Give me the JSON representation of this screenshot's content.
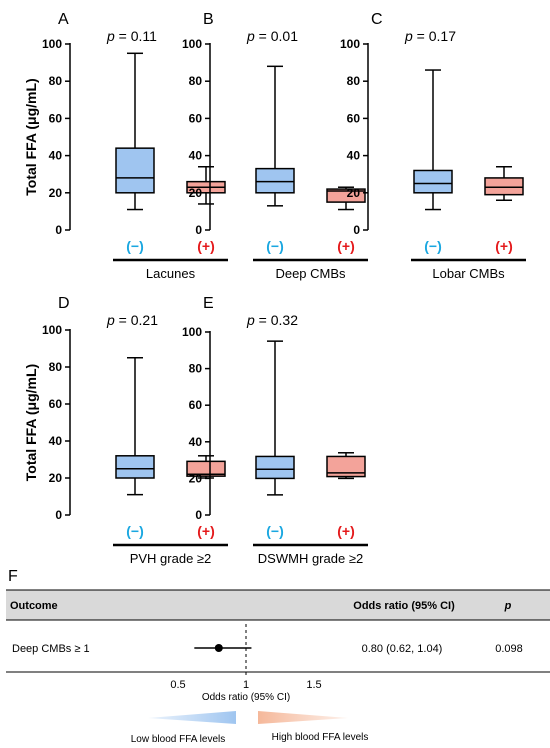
{
  "chart_data": [
    {
      "panel": "A",
      "type": "box",
      "p_label": "p",
      "p_text": "= 0.11",
      "ylabel": "Total FFA (μg/mL)",
      "ylim": [
        0,
        100
      ],
      "yticks": [
        0,
        20,
        40,
        60,
        80,
        100
      ],
      "group_label": "Lacunes",
      "series": [
        {
          "name": "(−)",
          "min": 11,
          "q1": 20,
          "median": 28,
          "q3": 44,
          "max": 95,
          "color": "#9fc5f0"
        },
        {
          "name": "(+)",
          "min": 14,
          "q1": 20,
          "median": 23,
          "q3": 26,
          "max": 34,
          "color": "#f3a39a"
        }
      ]
    },
    {
      "panel": "B",
      "type": "box",
      "p_label": "p",
      "p_text": "= 0.01",
      "ylim": [
        0,
        100
      ],
      "yticks": [
        0,
        20,
        40,
        60,
        80,
        100
      ],
      "group_label": "Deep CMBs",
      "series": [
        {
          "name": "(−)",
          "min": 13,
          "q1": 20,
          "median": 26,
          "q3": 33,
          "max": 88,
          "color": "#9fc5f0"
        },
        {
          "name": "(+)",
          "min": 11,
          "q1": 15,
          "median": 21,
          "q3": 22,
          "max": 23,
          "color": "#f3a39a"
        }
      ]
    },
    {
      "panel": "C",
      "type": "box",
      "p_label": "p",
      "p_text": "= 0.17",
      "ylim": [
        0,
        100
      ],
      "yticks": [
        0,
        20,
        40,
        60,
        80,
        100
      ],
      "group_label": "Lobar CMBs",
      "series": [
        {
          "name": "(−)",
          "min": 11,
          "q1": 20,
          "median": 25,
          "q3": 32,
          "max": 86,
          "color": "#9fc5f0"
        },
        {
          "name": "(+)",
          "min": 16,
          "q1": 19,
          "median": 23,
          "q3": 28,
          "max": 34,
          "color": "#f3a39a"
        }
      ]
    },
    {
      "panel": "D",
      "type": "box",
      "p_label": "p",
      "p_text": "= 0.21",
      "ylabel": "Total FFA (μg/mL)",
      "ylim": [
        0,
        100
      ],
      "yticks": [
        0,
        20,
        40,
        60,
        80,
        100
      ],
      "group_label": "PVH grade ≥2",
      "series": [
        {
          "name": "(−)",
          "min": 11,
          "q1": 20,
          "median": 25,
          "q3": 32,
          "max": 85,
          "color": "#9fc5f0"
        },
        {
          "name": "(+)",
          "min": 20,
          "q1": 21,
          "median": 22,
          "q3": 29,
          "max": 32,
          "color": "#f3a39a"
        }
      ]
    },
    {
      "panel": "E",
      "type": "box",
      "p_label": "p",
      "p_text": "= 0.32",
      "ylim": [
        0,
        100
      ],
      "yticks": [
        0,
        20,
        40,
        60,
        80,
        100
      ],
      "group_label": "DSWMH grade ≥2",
      "series": [
        {
          "name": "(−)",
          "min": 11,
          "q1": 20,
          "median": 25,
          "q3": 32,
          "max": 95,
          "color": "#9fc5f0"
        },
        {
          "name": "(+)",
          "min": 20,
          "q1": 21,
          "median": 23,
          "q3": 32,
          "max": 34,
          "color": "#f3a39a"
        }
      ]
    },
    {
      "panel": "F",
      "type": "forest",
      "columns": {
        "outcome": "Outcome",
        "or": "Odds ratio (95% CI)",
        "p": "p"
      },
      "rows": [
        {
          "outcome": "Deep CMBs ≥ 1",
          "or": 0.8,
          "ci_low": 0.62,
          "ci_high": 1.04,
          "or_text": "0.80 (0.62, 1.04)",
          "p_text": "0.098"
        }
      ],
      "xlim": [
        0.5,
        1.6
      ],
      "xticks": [
        0.5,
        1,
        1.5
      ],
      "xtick_labels": [
        "0.5",
        "1",
        "1.5"
      ],
      "reference": 1,
      "xlabel": "Odds ratio (95% CI)",
      "left_label": "Low blood FFA levels",
      "right_label": "High blood FFA levels",
      "left_color": "#9fc5f0",
      "right_color": "#f5b89a"
    }
  ]
}
